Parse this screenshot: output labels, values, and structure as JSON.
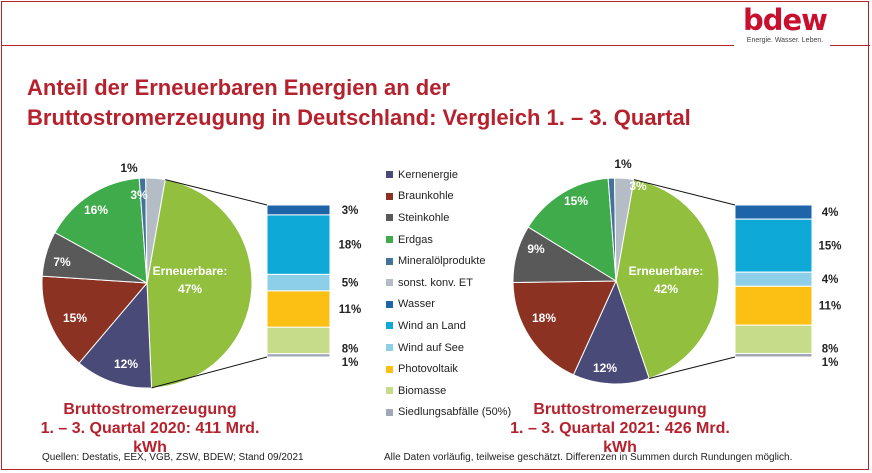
{
  "header": {
    "logo_text": "bdew",
    "logo_tagline": "Energie. Wasser. Leben.",
    "title_line1": "Anteil der Erneuerbaren Energien an der",
    "title_line2": "Bruttostromerzeugung in Deutschland: Vergleich 1. – 3. Quartal"
  },
  "colors": {
    "brand": "#b5222d",
    "Kernenergie": "#4a4a78",
    "Braunkohle": "#8b3222",
    "Steinkohle": "#595959",
    "Erdgas": "#3fab4a",
    "Mineralölprodukte": "#44739a",
    "sonst. konv. ET": "#b4bcc6",
    "Erneuerbare": "#92c03e",
    "Wasser": "#1d64a8",
    "Wind an Land": "#0fa9d8",
    "Wind auf See": "#8dcfe8",
    "Photovoltaik": "#fcbf14",
    "Biomasse": "#c6dc8a",
    "Siedlungsabfälle (50%)": "#a0a8b6"
  },
  "chart_data": [
    {
      "type": "pie",
      "title": "Bruttostromerzeugung 1. – 3. Quartal 2020: 411 Mrd. kWh",
      "slices": [
        {
          "label": "Erneuerbare",
          "value": 47,
          "display": "Erneuerbare:\n47%"
        },
        {
          "label": "Kernenergie",
          "value": 12,
          "display": "12%"
        },
        {
          "label": "Braunkohle",
          "value": 15,
          "display": "15%"
        },
        {
          "label": "Steinkohle",
          "value": 7,
          "display": "7%"
        },
        {
          "label": "Erdgas",
          "value": 16,
          "display": "16%"
        },
        {
          "label": "Mineralölprodukte",
          "value": 1,
          "display": "1%"
        },
        {
          "label": "sonst. konv. ET",
          "value": 3,
          "display": "3%"
        }
      ],
      "breakdown": {
        "of": "Erneuerbare",
        "type": "stacked-bar",
        "segments": [
          {
            "label": "Wasser",
            "value": 3,
            "display": "3%"
          },
          {
            "label": "Wind an Land",
            "value": 18,
            "display": "18%"
          },
          {
            "label": "Wind auf See",
            "value": 5,
            "display": "5%"
          },
          {
            "label": "Photovoltaik",
            "value": 11,
            "display": "11%"
          },
          {
            "label": "Biomasse",
            "value": 8,
            "display": "8%"
          },
          {
            "label": "Siedlungsabfälle (50%)",
            "value": 1,
            "display": "1%"
          }
        ]
      }
    },
    {
      "type": "pie",
      "title": "Bruttostromerzeugung 1. – 3. Quartal 2021: 426 Mrd. kWh",
      "slices": [
        {
          "label": "Erneuerbare",
          "value": 42,
          "display": "Erneuerbare:\n42%"
        },
        {
          "label": "Kernenergie",
          "value": 12,
          "display": "12%"
        },
        {
          "label": "Braunkohle",
          "value": 18,
          "display": "18%"
        },
        {
          "label": "Steinkohle",
          "value": 9,
          "display": "9%"
        },
        {
          "label": "Erdgas",
          "value": 15,
          "display": "15%"
        },
        {
          "label": "Mineralölprodukte",
          "value": 1,
          "display": "1%"
        },
        {
          "label": "sonst. konv. ET",
          "value": 3,
          "display": "3%"
        }
      ],
      "breakdown": {
        "of": "Erneuerbare",
        "type": "stacked-bar",
        "segments": [
          {
            "label": "Wasser",
            "value": 4,
            "display": "4%"
          },
          {
            "label": "Wind an Land",
            "value": 15,
            "display": "15%"
          },
          {
            "label": "Wind auf See",
            "value": 4,
            "display": "4%"
          },
          {
            "label": "Photovoltaik",
            "value": 11,
            "display": "11%"
          },
          {
            "label": "Biomasse",
            "value": 8,
            "display": "8%"
          },
          {
            "label": "Siedlungsabfälle (50%)",
            "value": 1,
            "display": "1%"
          }
        ]
      }
    }
  ],
  "legend": [
    "Kernenergie",
    "Braunkohle",
    "Steinkohle",
    "Erdgas",
    "Mineralölprodukte",
    "sonst. konv. ET",
    "Wasser",
    "Wind an Land",
    "Wind auf See",
    "Photovoltaik",
    "Biomasse",
    "Siedlungsabfälle (50%)"
  ],
  "subtitles": {
    "left_line1": "Bruttostromerzeugung",
    "left_line2": "1. – 3. Quartal 2020: 411 Mrd. kWh",
    "right_line1": "Bruttostromerzeugung",
    "right_line2": "1. – 3. Quartal 2021: 426 Mrd. kWh"
  },
  "footer": {
    "sources": "Quellen: Destatis, EEX, VGB, ZSW, BDEW; Stand 09/2021",
    "note": "Alle Daten vorläufig, teilweise geschätzt. Differenzen in Summen durch Rundungen möglich."
  }
}
